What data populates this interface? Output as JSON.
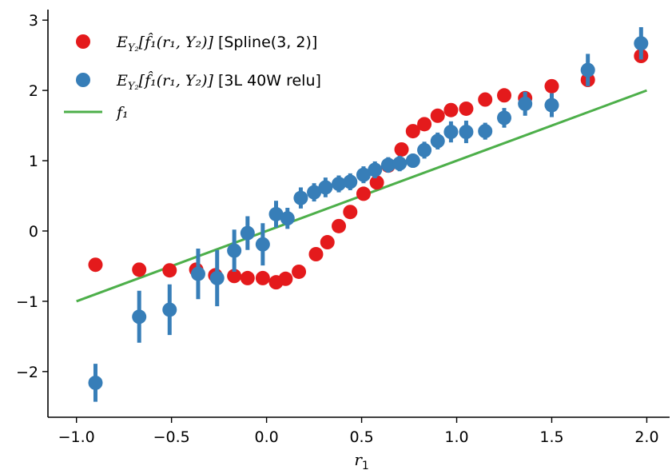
{
  "chart_data": {
    "type": "scatter",
    "xlabel": "r",
    "xlabel_sub": "1",
    "xlim": [
      -1.15,
      2.12
    ],
    "ylim": [
      -2.65,
      3.15
    ],
    "xticks": [
      -1.0,
      -0.5,
      0.0,
      0.5,
      1.0,
      1.5,
      2.0
    ],
    "xtick_labels": [
      "−1.0",
      "−0.5",
      "0.0",
      "0.5",
      "1.0",
      "1.5",
      "2.0"
    ],
    "yticks": [
      -2,
      -1,
      0,
      1,
      2,
      3
    ],
    "ytick_labels": [
      "−2",
      "−1",
      "0",
      "1",
      "2",
      "3"
    ],
    "grid": false,
    "legend_position": "top-left",
    "legend": [
      {
        "series": "spline",
        "prefix": "E",
        "sub": "Y₂",
        "math": "[f̂₁(r₁, Y₂)]",
        "label": " [Spline(3, 2)]"
      },
      {
        "series": "nn",
        "prefix": "E",
        "sub": "Y₂",
        "math": "[f̂₁(r₁, Y₂)]",
        "label": " [3L 40W relu]"
      },
      {
        "series": "f1",
        "math": "f₁",
        "label": ""
      }
    ],
    "series": [
      {
        "key": "spline",
        "kind": "errorbar-points",
        "color": "#e41a1c",
        "x": [
          -0.9,
          -0.67,
          -0.51,
          -0.37,
          -0.27,
          -0.17,
          -0.1,
          -0.02,
          0.05,
          0.1,
          0.17,
          0.26,
          0.32,
          0.38,
          0.44,
          0.51,
          0.58,
          0.64,
          0.71,
          0.77,
          0.83,
          0.9,
          0.97,
          1.05,
          1.15,
          1.25,
          1.36,
          1.5,
          1.69,
          1.97
        ],
        "y": [
          -0.48,
          -0.55,
          -0.56,
          -0.55,
          -0.63,
          -0.64,
          -0.67,
          -0.67,
          -0.73,
          -0.68,
          -0.58,
          -0.33,
          -0.16,
          0.07,
          0.27,
          0.53,
          0.69,
          0.93,
          1.16,
          1.42,
          1.52,
          1.64,
          1.72,
          1.74,
          1.87,
          1.93,
          1.89,
          2.06,
          2.15,
          2.49
        ],
        "err": [
          0.04,
          0.1,
          0.08,
          0.07,
          0.06,
          0.06,
          0.06,
          0.06,
          0.09,
          0.08,
          0.07,
          0.08,
          0.08,
          0.07,
          0.07,
          0.06,
          0.06,
          0.06,
          0.06,
          0.06,
          0.08,
          0.08,
          0.08,
          0.06,
          0.05,
          0.05,
          0.07,
          0.05,
          0.1,
          0.05
        ]
      },
      {
        "key": "nn",
        "kind": "errorbar-points",
        "color": "#377eb8",
        "x": [
          -0.9,
          -0.67,
          -0.51,
          -0.36,
          -0.26,
          -0.17,
          -0.1,
          -0.02,
          0.05,
          0.11,
          0.18,
          0.25,
          0.31,
          0.38,
          0.44,
          0.51,
          0.57,
          0.64,
          0.7,
          0.77,
          0.83,
          0.9,
          0.97,
          1.05,
          1.15,
          1.25,
          1.36,
          1.5,
          1.69,
          1.97
        ],
        "y": [
          -2.16,
          -1.22,
          -1.12,
          -0.61,
          -0.67,
          -0.28,
          -0.03,
          -0.19,
          0.24,
          0.18,
          0.47,
          0.55,
          0.62,
          0.67,
          0.7,
          0.8,
          0.87,
          0.94,
          0.96,
          1.0,
          1.15,
          1.28,
          1.41,
          1.41,
          1.42,
          1.61,
          1.81,
          1.79,
          2.29,
          2.67
        ],
        "err": [
          0.27,
          0.37,
          0.36,
          0.36,
          0.4,
          0.3,
          0.24,
          0.3,
          0.19,
          0.15,
          0.15,
          0.13,
          0.14,
          0.12,
          0.12,
          0.12,
          0.12,
          0.11,
          0.11,
          0.1,
          0.12,
          0.12,
          0.15,
          0.16,
          0.12,
          0.14,
          0.17,
          0.17,
          0.23,
          0.23
        ]
      },
      {
        "key": "f1",
        "kind": "line",
        "color": "#4daf4a",
        "x": [
          -1.0,
          2.0
        ],
        "y": [
          -1.0,
          2.0
        ]
      }
    ]
  }
}
